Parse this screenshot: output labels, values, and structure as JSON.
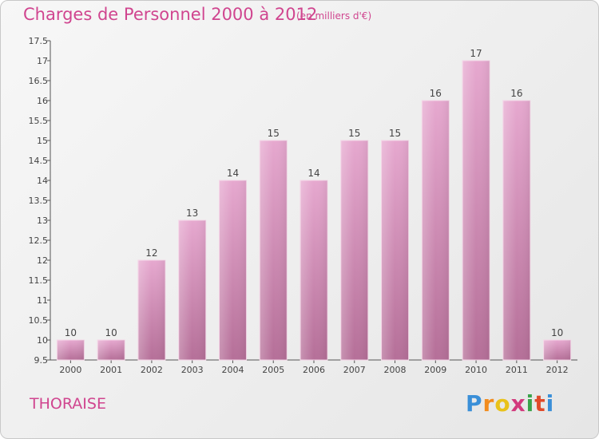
{
  "title": "Charges de Personnel 2000 à 2012",
  "unit": "(en milliers d'€)",
  "commune": "THORAISE",
  "logo": {
    "letters": [
      "P",
      "r",
      "o",
      "x",
      "i",
      "t",
      "i"
    ],
    "colors": [
      "#3a8fd8",
      "#f28c1e",
      "#e9c21a",
      "#d23a7d",
      "#3aa34a",
      "#e04a2a",
      "#3a8fd8"
    ]
  },
  "colors": {
    "bar_top": "#e6a8cf",
    "bar_bottom": "#b56f98",
    "text": "#444444",
    "accent": "#d0458f"
  },
  "chart_data": {
    "type": "bar",
    "categories": [
      "2000",
      "2001",
      "2002",
      "2003",
      "2004",
      "2005",
      "2006",
      "2007",
      "2008",
      "2009",
      "2010",
      "2011",
      "2012"
    ],
    "values": [
      10,
      10,
      12,
      13,
      14,
      15,
      14,
      15,
      15,
      16,
      17,
      16,
      10
    ],
    "value_labels": [
      "10",
      "10",
      "12",
      "13",
      "14",
      "15",
      "14",
      "15",
      "15",
      "16",
      "17",
      "16",
      "10"
    ],
    "ylim": [
      9.5,
      17.5
    ],
    "yticks": [
      9.5,
      10,
      10.5,
      11,
      11.5,
      12,
      12.5,
      13,
      13.5,
      14,
      14.5,
      15,
      15.5,
      16,
      16.5,
      17,
      17.5
    ],
    "ytick_labels": [
      "9.5",
      "10",
      "10.5",
      "11",
      "11.5",
      "12",
      "12.5",
      "13",
      "13.5",
      "14",
      "14.5",
      "15",
      "15.5",
      "16",
      "16.5",
      "17",
      "17.5"
    ],
    "grid": false,
    "xlabel": "",
    "ylabel": ""
  }
}
